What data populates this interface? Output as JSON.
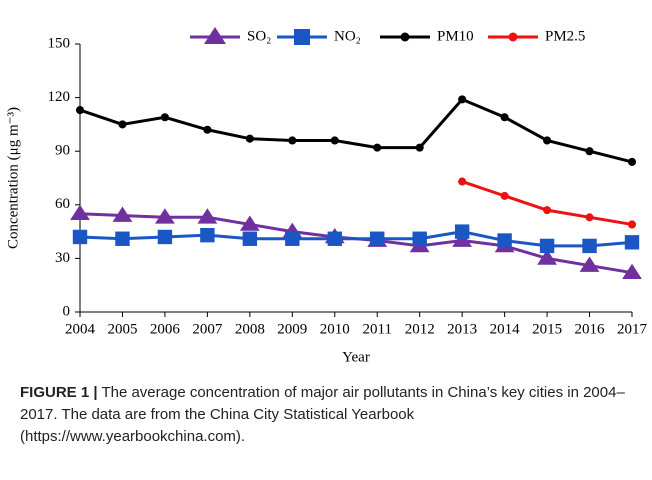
{
  "chart_data": {
    "type": "line",
    "x_label": "Year",
    "y_label": "Concentration (μg m⁻³)",
    "categories": [
      "2004",
      "2005",
      "2006",
      "2007",
      "2008",
      "2009",
      "2010",
      "2011",
      "2012",
      "2013",
      "2014",
      "2015",
      "2016",
      "2017"
    ],
    "series": [
      {
        "name": "SO₂",
        "color": "#7030a0",
        "marker": "triangle",
        "values": [
          55,
          54,
          53,
          53,
          49,
          45,
          42,
          40,
          37,
          40,
          37,
          30,
          26,
          22
        ]
      },
      {
        "name": "NO₂",
        "color": "#1a56c4",
        "marker": "square",
        "values": [
          42,
          41,
          42,
          43,
          41,
          41,
          41,
          41,
          41,
          45,
          40,
          37,
          37,
          39
        ]
      },
      {
        "name": "PM10",
        "color": "#000000",
        "marker": "circle",
        "values": [
          113,
          105,
          109,
          102,
          97,
          96,
          96,
          92,
          92,
          119,
          109,
          96,
          90,
          84
        ]
      },
      {
        "name": "PM2.5",
        "color": "#ee1111",
        "marker": "circle",
        "values": [
          null,
          null,
          null,
          null,
          null,
          null,
          null,
          null,
          null,
          73,
          65,
          57,
          53,
          49
        ]
      }
    ],
    "ylim": [
      0,
      150
    ],
    "yticks": [
      0,
      30,
      60,
      90,
      120,
      150
    ],
    "grid": false,
    "legend": "top"
  },
  "caption": {
    "label": "FIGURE 1 |",
    "text": "The average concentration of major air pollutants in China’s key cities in 2004–2017. The data are from the China City Statistical Yearbook (https://www.yearbookchina.com)."
  }
}
